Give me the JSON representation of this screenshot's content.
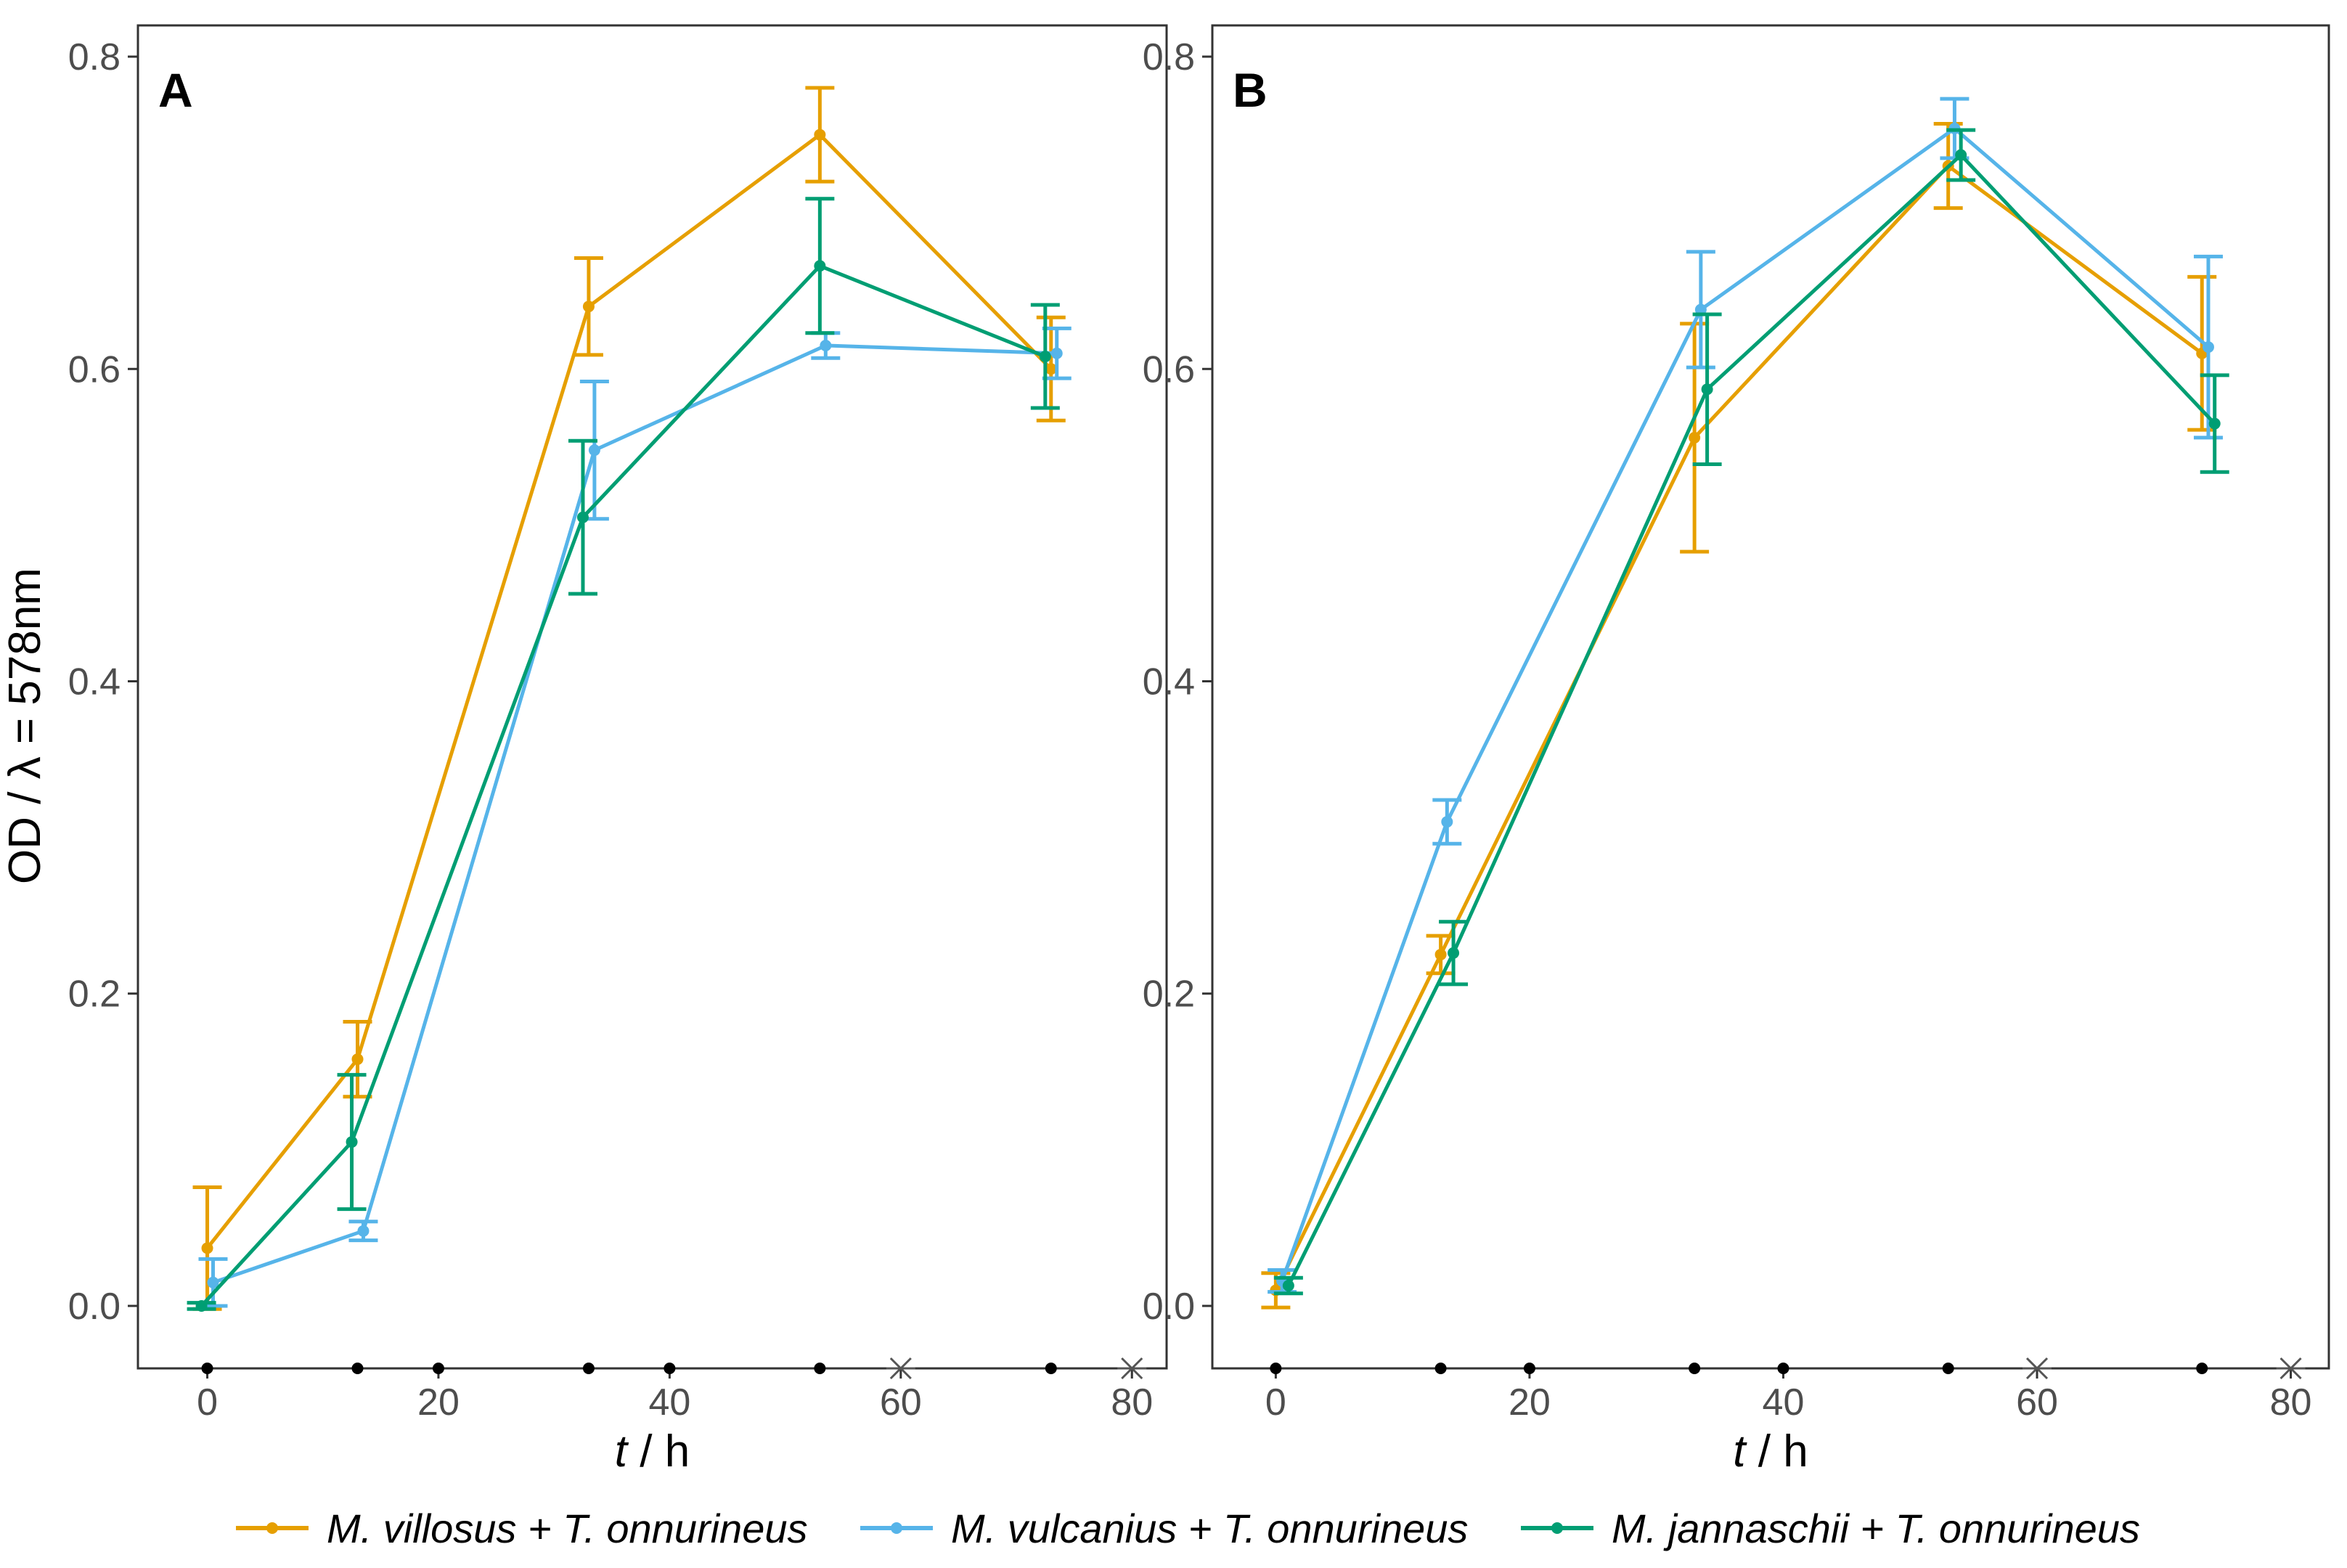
{
  "colors": {
    "villosus": "#E69F00",
    "vulcanius": "#56B4E9",
    "jannaschii": "#009E73",
    "frame": "#333333",
    "tick_text": "#4d4d4d"
  },
  "chart_data": [
    {
      "type": "line",
      "panel_label": "A",
      "xlabel_var": "t",
      "xlabel_unit": " / h",
      "ylabel": "OD / λ = 578nm",
      "xlim": [
        -6,
        83
      ],
      "ylim": [
        -0.04,
        0.82
      ],
      "x_ticks": [
        0,
        20,
        40,
        60,
        80
      ],
      "y_ticks": [
        0.0,
        0.2,
        0.4,
        0.6,
        0.8
      ],
      "y_tick_labels": [
        "0.0",
        "0.2",
        "0.4",
        "0.6",
        "0.8"
      ],
      "sampling_points": [
        0,
        13,
        20,
        33,
        40,
        53,
        73
      ],
      "asterisk_points": [
        60,
        80
      ],
      "series": [
        {
          "name": "M. villosus + T. onnurineus",
          "key": "villosus",
          "x": [
            0,
            13,
            33,
            53,
            73
          ],
          "y": [
            0.037,
            0.158,
            0.64,
            0.75,
            0.6
          ],
          "err": [
            0.039,
            0.024,
            0.031,
            0.03,
            0.033
          ]
        },
        {
          "name": "M. vulcanius + T. onnurineus",
          "key": "vulcanius",
          "x": [
            0.5,
            13.5,
            33.5,
            53.5,
            73.5
          ],
          "y": [
            0.015,
            0.048,
            0.548,
            0.615,
            0.61
          ],
          "err": [
            0.015,
            0.006,
            0.044,
            0.008,
            0.016
          ]
        },
        {
          "name": "M. jannaschii + T. onnurineus",
          "key": "jannaschii",
          "x": [
            -0.5,
            12.5,
            32.5,
            53,
            72.5
          ],
          "y": [
            0.0,
            0.105,
            0.505,
            0.666,
            0.608
          ],
          "err": [
            0.002,
            0.043,
            0.049,
            0.043,
            0.033
          ]
        }
      ]
    },
    {
      "type": "line",
      "panel_label": "B",
      "xlabel_var": "t",
      "xlabel_unit": " / h",
      "ylabel": "",
      "xlim": [
        -5,
        83
      ],
      "ylim": [
        -0.04,
        0.82
      ],
      "x_ticks": [
        0,
        20,
        40,
        60,
        80
      ],
      "y_ticks": [
        0.0,
        0.2,
        0.4,
        0.6,
        0.8
      ],
      "y_tick_labels": [
        "0.0",
        "0.2",
        "0.4",
        "0.6",
        "0.8"
      ],
      "sampling_points": [
        0,
        13,
        20,
        33,
        40,
        53,
        73
      ],
      "asterisk_points": [
        60,
        80
      ],
      "series": [
        {
          "name": "M. villosus + T. onnurineus",
          "key": "villosus",
          "x": [
            0,
            13,
            33,
            53,
            73
          ],
          "y": [
            0.01,
            0.225,
            0.556,
            0.73,
            0.61
          ],
          "err": [
            0.011,
            0.012,
            0.073,
            0.027,
            0.049
          ]
        },
        {
          "name": "M. vulcanius + T. onnurineus",
          "key": "vulcanius",
          "x": [
            0.5,
            13.5,
            33.5,
            53.5,
            73.5
          ],
          "y": [
            0.016,
            0.31,
            0.638,
            0.754,
            0.614
          ],
          "err": [
            0.007,
            0.014,
            0.037,
            0.019,
            0.058
          ]
        },
        {
          "name": "M. jannaschii + T. onnurineus",
          "key": "jannaschii",
          "x": [
            1,
            14,
            34,
            54,
            74
          ],
          "y": [
            0.013,
            0.226,
            0.587,
            0.737,
            0.565
          ],
          "err": [
            0.005,
            0.02,
            0.048,
            0.016,
            0.031
          ]
        }
      ]
    }
  ],
  "legend": [
    {
      "label": "M. villosus + T. onnurineus",
      "key": "villosus"
    },
    {
      "label": "M. vulcanius + T. onnurineus",
      "key": "vulcanius"
    },
    {
      "label": "M. jannaschii + T. onnurineus",
      "key": "jannaschii"
    }
  ]
}
